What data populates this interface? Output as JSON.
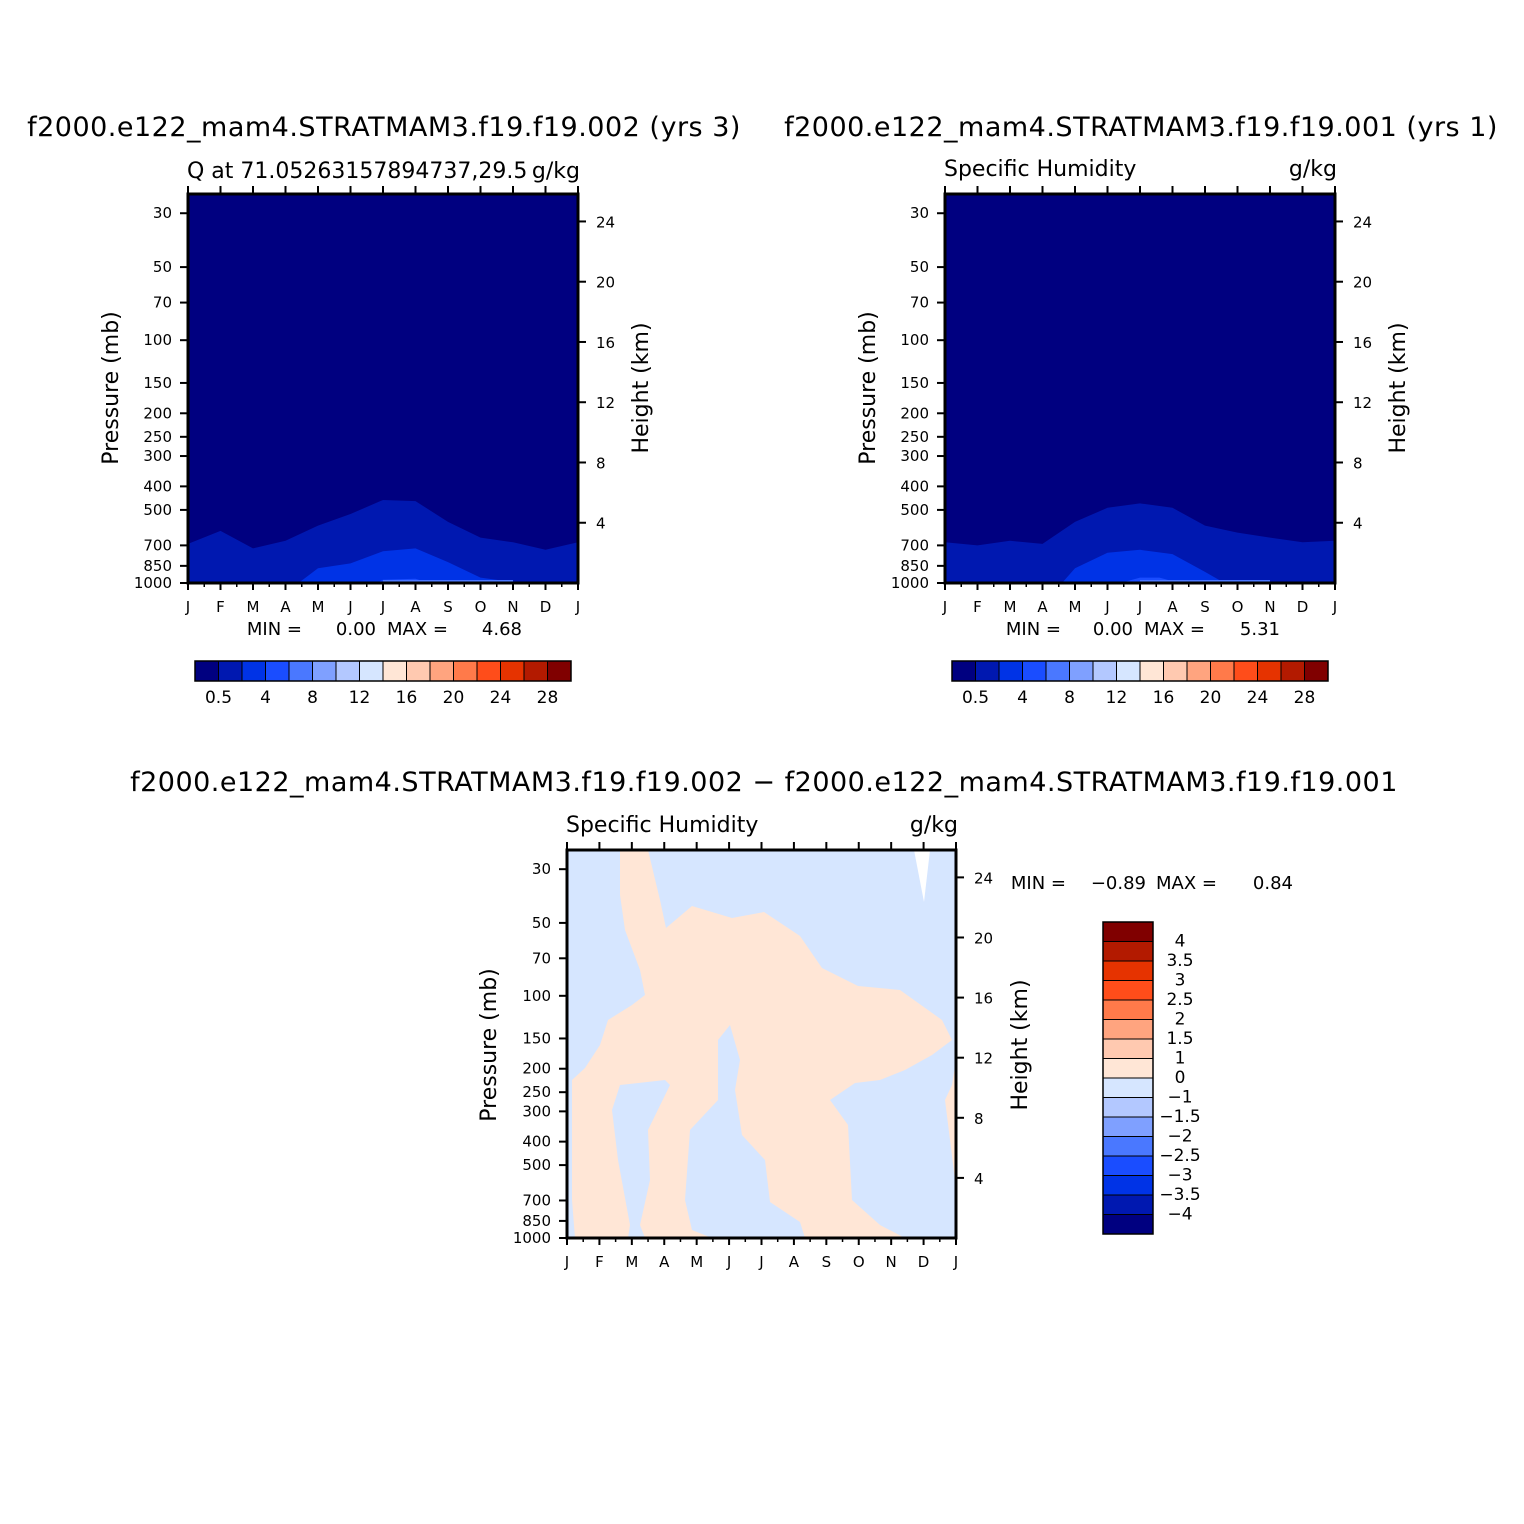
{
  "titles": {
    "left": "f2000.e122_mam4.STRATMAM3.f19.f19.002 (yrs 3)",
    "right": "f2000.e122_mam4.STRATMAM3.f19.f19.001 (yrs 1)",
    "bottom": "f2000.e122_mam4.STRATMAM3.f19.f19.002 − f2000.e122_mam4.STRATMAM3.f19.f19.001"
  },
  "colors": {
    "abs_levels": [
      "#000080",
      "#0018b0",
      "#0033e6",
      "#1a4dff",
      "#4a78ff",
      "#7fa0ff",
      "#b3c8ff",
      "#d6e6ff",
      "#ffe6d6",
      "#ffc9b0",
      "#ffa47f",
      "#ff7a4a",
      "#ff4d1a",
      "#e63300",
      "#b31a00",
      "#800000"
    ],
    "diff_levels": [
      "#000080",
      "#0018b0",
      "#0033e6",
      "#1a4dff",
      "#4a78ff",
      "#7fa0ff",
      "#b3c8ff",
      "#d6e6ff",
      "#ffe6d6",
      "#ffc9b0",
      "#ffa47f",
      "#ff7a4a",
      "#ff4d1a",
      "#e63300",
      "#b31a00",
      "#800000"
    ]
  },
  "chart_data": [
    {
      "type": "heatmap",
      "title": "Q at 71.05263157894737,29.5",
      "units": "g/kg",
      "ylabel": "Pressure (mb)",
      "ylabel_right": "Height (km)",
      "x_ticks": [
        "J",
        "F",
        "M",
        "A",
        "M",
        "J",
        "J",
        "A",
        "S",
        "O",
        "N",
        "D",
        "J"
      ],
      "y_ticks": [
        "30",
        "50",
        "70",
        "100",
        "150",
        "200",
        "250",
        "300",
        "400",
        "500",
        "700",
        "850",
        "1000"
      ],
      "y_ticks_right": [
        "24",
        "20",
        "16",
        "12",
        "8",
        "4"
      ],
      "y_scale": "log",
      "ylim": [
        1000,
        25
      ],
      "min_label": "MIN =",
      "min_value": "0.00",
      "max_label": "MAX =",
      "max_value": "4.68",
      "colorbar_labels": [
        "0.5",
        "4",
        "8",
        "12",
        "16",
        "20",
        "24",
        "28"
      ],
      "contours": [
        {
          "level": 1,
          "months": [
            0,
            1,
            2,
            3,
            4,
            5,
            6,
            7,
            8,
            9,
            10,
            11,
            12
          ],
          "pressure": [
            690,
            610,
            720,
            670,
            580,
            520,
            455,
            460,
            560,
            650,
            680,
            730,
            680
          ]
        },
        {
          "level": 2,
          "months": [
            3.4,
            4,
            5,
            6,
            7,
            8,
            9,
            10.2
          ],
          "pressure": [
            1000,
            870,
            830,
            740,
            720,
            820,
            950,
            1000
          ]
        },
        {
          "level": 3,
          "months": [
            5.8,
            6,
            7,
            7.4
          ],
          "pressure": [
            1000,
            970,
            960,
            1000
          ]
        }
      ]
    },
    {
      "type": "heatmap",
      "title": "Specific Humidity",
      "units": "g/kg",
      "ylabel": "Pressure (mb)",
      "ylabel_right": "Height (km)",
      "x_ticks": [
        "J",
        "F",
        "M",
        "A",
        "M",
        "J",
        "J",
        "A",
        "S",
        "O",
        "N",
        "D",
        "J"
      ],
      "y_ticks": [
        "30",
        "50",
        "70",
        "100",
        "150",
        "200",
        "250",
        "300",
        "400",
        "500",
        "700",
        "850",
        "1000"
      ],
      "y_ticks_right": [
        "24",
        "20",
        "16",
        "12",
        "8",
        "4"
      ],
      "y_scale": "log",
      "ylim": [
        1000,
        25
      ],
      "min_label": "MIN =",
      "min_value": "0.00",
      "max_label": "MAX =",
      "max_value": "5.31",
      "colorbar_labels": [
        "0.5",
        "4",
        "8",
        "12",
        "16",
        "20",
        "24",
        "28"
      ],
      "contours": [
        {
          "level": 1,
          "months": [
            0,
            1,
            2,
            3,
            4,
            5,
            6,
            7,
            8,
            9,
            10,
            11,
            12
          ],
          "pressure": [
            680,
            700,
            670,
            690,
            560,
            490,
            470,
            490,
            580,
            620,
            650,
            680,
            670
          ]
        },
        {
          "level": 2,
          "months": [
            3.6,
            4,
            5,
            6,
            7,
            8,
            8.6
          ],
          "pressure": [
            1000,
            870,
            750,
            730,
            760,
            900,
            1000
          ]
        },
        {
          "level": 3,
          "months": [
            5.4,
            6,
            6.6,
            7.2
          ],
          "pressure": [
            1000,
            950,
            950,
            1000
          ]
        }
      ]
    },
    {
      "type": "heatmap",
      "title": "Specific Humidity",
      "units": "g/kg",
      "ylabel": "Pressure (mb)",
      "ylabel_right": "Height (km)",
      "x_ticks": [
        "J",
        "F",
        "M",
        "A",
        "M",
        "J",
        "J",
        "A",
        "S",
        "O",
        "N",
        "D",
        "J"
      ],
      "y_ticks": [
        "30",
        "50",
        "70",
        "100",
        "150",
        "200",
        "250",
        "300",
        "400",
        "500",
        "700",
        "850",
        "1000"
      ],
      "y_ticks_right": [
        "24",
        "20",
        "16",
        "12",
        "8",
        "4"
      ],
      "y_scale": "log",
      "ylim": [
        1000,
        25
      ],
      "min_label": "MIN =",
      "min_value": "−0.89",
      "max_label": "MAX =",
      "max_value": "0.84",
      "colorbar_labels": [
        "4",
        "3.5",
        "3",
        "2.5",
        "2",
        "1.5",
        "1",
        "0",
        "−1",
        "−1.5",
        "−2",
        "−2.5",
        "−3",
        "−3.5",
        "−4"
      ],
      "background_level": "-1 to 0",
      "positive_region_level": "0 to 1"
    }
  ]
}
